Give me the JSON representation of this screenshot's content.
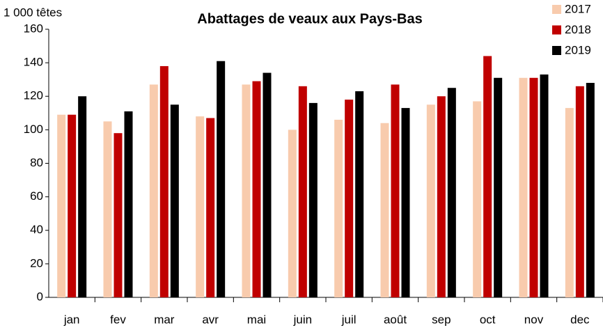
{
  "chart_data": {
    "type": "bar",
    "title": "Abattages de veaux aux Pays-Bas",
    "y_label": "1 000 têtes",
    "categories": [
      "jan",
      "fev",
      "mar",
      "avr",
      "mai",
      "juin",
      "juil",
      "août",
      "sep",
      "oct",
      "nov",
      "dec"
    ],
    "series": [
      {
        "name": "2017",
        "color": "#f8cbad",
        "values": [
          109,
          105,
          127,
          108,
          127,
          100,
          106,
          104,
          115,
          117,
          131,
          113
        ]
      },
      {
        "name": "2018",
        "color": "#c00000",
        "values": [
          109,
          98,
          138,
          107,
          129,
          126,
          118,
          127,
          120,
          144,
          131,
          126
        ]
      },
      {
        "name": "2019",
        "color": "#000000",
        "values": [
          120,
          111,
          115,
          141,
          134,
          116,
          123,
          113,
          125,
          131,
          133,
          128
        ]
      }
    ],
    "ylim": [
      0,
      160
    ],
    "yticks": [
      0,
      20,
      40,
      60,
      80,
      100,
      120,
      140,
      160
    ],
    "legend": "top-right"
  }
}
